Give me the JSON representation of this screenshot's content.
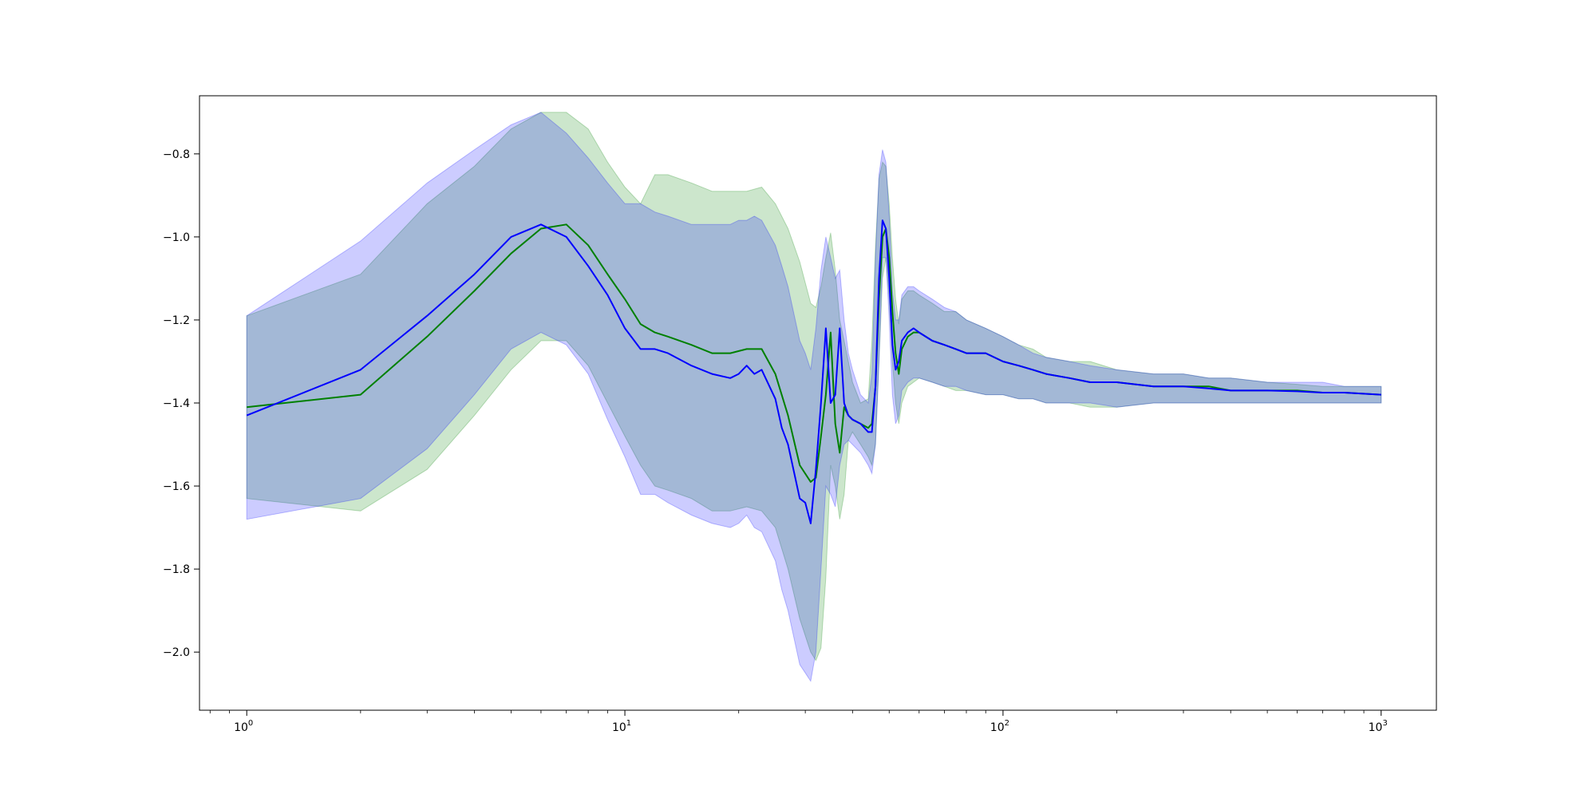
{
  "chart_data": {
    "type": "line",
    "title": "",
    "xlabel": "",
    "ylabel": "",
    "xscale": "log",
    "xlim": [
      0.75,
      1400
    ],
    "ylim": [
      -2.14,
      -0.66
    ],
    "grid": false,
    "legend": "none",
    "xticks": [
      {
        "base": "10",
        "exp": "0",
        "value": 1
      },
      {
        "base": "10",
        "exp": "1",
        "value": 10
      },
      {
        "base": "10",
        "exp": "2",
        "value": 100
      },
      {
        "base": "10",
        "exp": "3",
        "value": 1000
      }
    ],
    "yticks": [
      {
        "label": "−2.0",
        "value": -2.0
      },
      {
        "label": "−1.8",
        "value": -1.8
      },
      {
        "label": "−1.6",
        "value": -1.6
      },
      {
        "label": "−1.4",
        "value": -1.4
      },
      {
        "label": "−1.2",
        "value": -1.2
      },
      {
        "label": "−1.0",
        "value": -1.0
      },
      {
        "label": "−0.8",
        "value": -0.8
      }
    ],
    "series": [
      {
        "color": "#008000",
        "band_color": "#008000",
        "band_opacity": 0.2,
        "x": [
          1,
          2,
          3,
          4,
          5,
          6,
          7,
          8,
          9,
          10,
          11,
          12,
          13,
          15,
          17,
          19,
          21,
          23,
          25,
          27,
          29,
          31,
          32,
          33,
          34,
          35,
          36,
          37,
          38,
          39,
          40,
          42,
          44,
          45,
          46,
          47,
          48,
          49,
          50,
          51,
          52,
          53,
          54,
          56,
          58,
          60,
          65,
          70,
          75,
          80,
          90,
          100,
          110,
          120,
          130,
          150,
          170,
          200,
          250,
          300,
          350,
          400,
          500,
          600,
          700,
          800,
          1000
        ],
        "mean": [
          -1.41,
          -1.38,
          -1.24,
          -1.13,
          -1.04,
          -0.98,
          -0.97,
          -1.02,
          -1.09,
          -1.15,
          -1.21,
          -1.23,
          -1.24,
          -1.26,
          -1.28,
          -1.28,
          -1.27,
          -1.27,
          -1.33,
          -1.43,
          -1.55,
          -1.59,
          -1.58,
          -1.48,
          -1.38,
          -1.23,
          -1.45,
          -1.52,
          -1.41,
          -1.43,
          -1.44,
          -1.45,
          -1.46,
          -1.45,
          -1.36,
          -1.15,
          -1.0,
          -0.98,
          -1.05,
          -1.18,
          -1.28,
          -1.33,
          -1.27,
          -1.24,
          -1.23,
          -1.23,
          -1.25,
          -1.26,
          -1.27,
          -1.28,
          -1.28,
          -1.3,
          -1.31,
          -1.32,
          -1.33,
          -1.34,
          -1.35,
          -1.35,
          -1.36,
          -1.36,
          -1.36,
          -1.37,
          -1.37,
          -1.37,
          -1.375,
          -1.375,
          -1.38
        ],
        "upper": [
          -1.19,
          -1.09,
          -0.92,
          -0.83,
          -0.74,
          -0.7,
          -0.7,
          -0.74,
          -0.82,
          -0.88,
          -0.92,
          -0.85,
          -0.85,
          -0.87,
          -0.89,
          -0.89,
          -0.89,
          -0.88,
          -0.92,
          -0.98,
          -1.06,
          -1.16,
          -1.17,
          -1.12,
          -1.05,
          -0.99,
          -1.08,
          -1.2,
          -1.25,
          -1.3,
          -1.35,
          -1.4,
          -1.39,
          -1.25,
          -1.02,
          -0.86,
          -0.82,
          -0.83,
          -0.92,
          -1.05,
          -1.15,
          -1.21,
          -1.15,
          -1.13,
          -1.13,
          -1.14,
          -1.16,
          -1.18,
          -1.18,
          -1.2,
          -1.22,
          -1.24,
          -1.26,
          -1.27,
          -1.29,
          -1.3,
          -1.3,
          -1.32,
          -1.33,
          -1.33,
          -1.34,
          -1.34,
          -1.35,
          -1.355,
          -1.36,
          -1.36,
          -1.36
        ],
        "lower": [
          -1.63,
          -1.66,
          -1.56,
          -1.43,
          -1.32,
          -1.25,
          -1.25,
          -1.31,
          -1.4,
          -1.48,
          -1.55,
          -1.6,
          -1.61,
          -1.63,
          -1.66,
          -1.66,
          -1.65,
          -1.66,
          -1.7,
          -1.8,
          -1.92,
          -2.0,
          -2.02,
          -1.99,
          -1.82,
          -1.55,
          -1.6,
          -1.68,
          -1.62,
          -1.49,
          -1.47,
          -1.5,
          -1.53,
          -1.55,
          -1.5,
          -1.3,
          -1.1,
          -1.05,
          -1.15,
          -1.3,
          -1.4,
          -1.45,
          -1.4,
          -1.36,
          -1.35,
          -1.34,
          -1.35,
          -1.36,
          -1.37,
          -1.37,
          -1.38,
          -1.38,
          -1.39,
          -1.39,
          -1.4,
          -1.4,
          -1.41,
          -1.41,
          -1.4,
          -1.4,
          -1.4,
          -1.4,
          -1.4,
          -1.4,
          -1.4,
          -1.4,
          -1.4
        ]
      },
      {
        "color": "#0000ff",
        "band_color": "#0000ff",
        "band_opacity": 0.2,
        "x": [
          1,
          2,
          3,
          4,
          5,
          6,
          7,
          8,
          9,
          10,
          11,
          12,
          13,
          15,
          17,
          19,
          20,
          21,
          22,
          23,
          25,
          26,
          27,
          29,
          30,
          31,
          32,
          33,
          34,
          35,
          36,
          37,
          38,
          39,
          40,
          42,
          44,
          45,
          46,
          47,
          48,
          49,
          50,
          51,
          52,
          53,
          54,
          56,
          58,
          60,
          65,
          70,
          75,
          80,
          90,
          100,
          110,
          120,
          130,
          150,
          170,
          200,
          250,
          300,
          350,
          400,
          500,
          600,
          700,
          800,
          1000
        ],
        "mean": [
          -1.43,
          -1.32,
          -1.19,
          -1.09,
          -1.0,
          -0.97,
          -1.0,
          -1.07,
          -1.14,
          -1.22,
          -1.27,
          -1.27,
          -1.28,
          -1.31,
          -1.33,
          -1.34,
          -1.33,
          -1.31,
          -1.33,
          -1.32,
          -1.39,
          -1.46,
          -1.5,
          -1.63,
          -1.64,
          -1.69,
          -1.56,
          -1.4,
          -1.22,
          -1.4,
          -1.38,
          -1.22,
          -1.4,
          -1.43,
          -1.44,
          -1.45,
          -1.47,
          -1.47,
          -1.36,
          -1.1,
          -0.96,
          -0.98,
          -1.1,
          -1.26,
          -1.32,
          -1.3,
          -1.25,
          -1.23,
          -1.22,
          -1.23,
          -1.25,
          -1.26,
          -1.27,
          -1.28,
          -1.28,
          -1.3,
          -1.31,
          -1.32,
          -1.33,
          -1.34,
          -1.35,
          -1.35,
          -1.36,
          -1.36,
          -1.365,
          -1.37,
          -1.37,
          -1.372,
          -1.375,
          -1.375,
          -1.38
        ],
        "upper": [
          -1.19,
          -1.01,
          -0.87,
          -0.79,
          -0.73,
          -0.7,
          -0.75,
          -0.81,
          -0.87,
          -0.92,
          -0.92,
          -0.94,
          -0.95,
          -0.97,
          -0.97,
          -0.97,
          -0.96,
          -0.96,
          -0.95,
          -0.96,
          -1.02,
          -1.07,
          -1.12,
          -1.25,
          -1.28,
          -1.32,
          -1.22,
          -1.08,
          -1.0,
          -1.05,
          -1.1,
          -1.08,
          -1.2,
          -1.28,
          -1.32,
          -1.38,
          -1.4,
          -1.33,
          -1.05,
          -0.85,
          -0.79,
          -0.82,
          -0.95,
          -1.13,
          -1.2,
          -1.2,
          -1.14,
          -1.12,
          -1.12,
          -1.13,
          -1.15,
          -1.17,
          -1.18,
          -1.2,
          -1.22,
          -1.24,
          -1.26,
          -1.28,
          -1.29,
          -1.3,
          -1.31,
          -1.32,
          -1.33,
          -1.33,
          -1.34,
          -1.34,
          -1.35,
          -1.35,
          -1.35,
          -1.36,
          -1.36
        ],
        "lower": [
          -1.68,
          -1.63,
          -1.51,
          -1.38,
          -1.27,
          -1.23,
          -1.26,
          -1.33,
          -1.44,
          -1.53,
          -1.62,
          -1.62,
          -1.64,
          -1.67,
          -1.69,
          -1.7,
          -1.69,
          -1.67,
          -1.7,
          -1.71,
          -1.78,
          -1.85,
          -1.9,
          -2.03,
          -2.05,
          -2.07,
          -2.0,
          -1.8,
          -1.6,
          -1.62,
          -1.65,
          -1.55,
          -1.5,
          -1.49,
          -1.5,
          -1.52,
          -1.55,
          -1.57,
          -1.5,
          -1.3,
          -1.05,
          -1.05,
          -1.2,
          -1.38,
          -1.45,
          -1.43,
          -1.37,
          -1.35,
          -1.34,
          -1.34,
          -1.35,
          -1.36,
          -1.36,
          -1.37,
          -1.38,
          -1.38,
          -1.39,
          -1.39,
          -1.4,
          -1.4,
          -1.4,
          -1.41,
          -1.4,
          -1.4,
          -1.4,
          -1.4,
          -1.4,
          -1.4,
          -1.4,
          -1.4,
          -1.4
        ]
      }
    ]
  }
}
